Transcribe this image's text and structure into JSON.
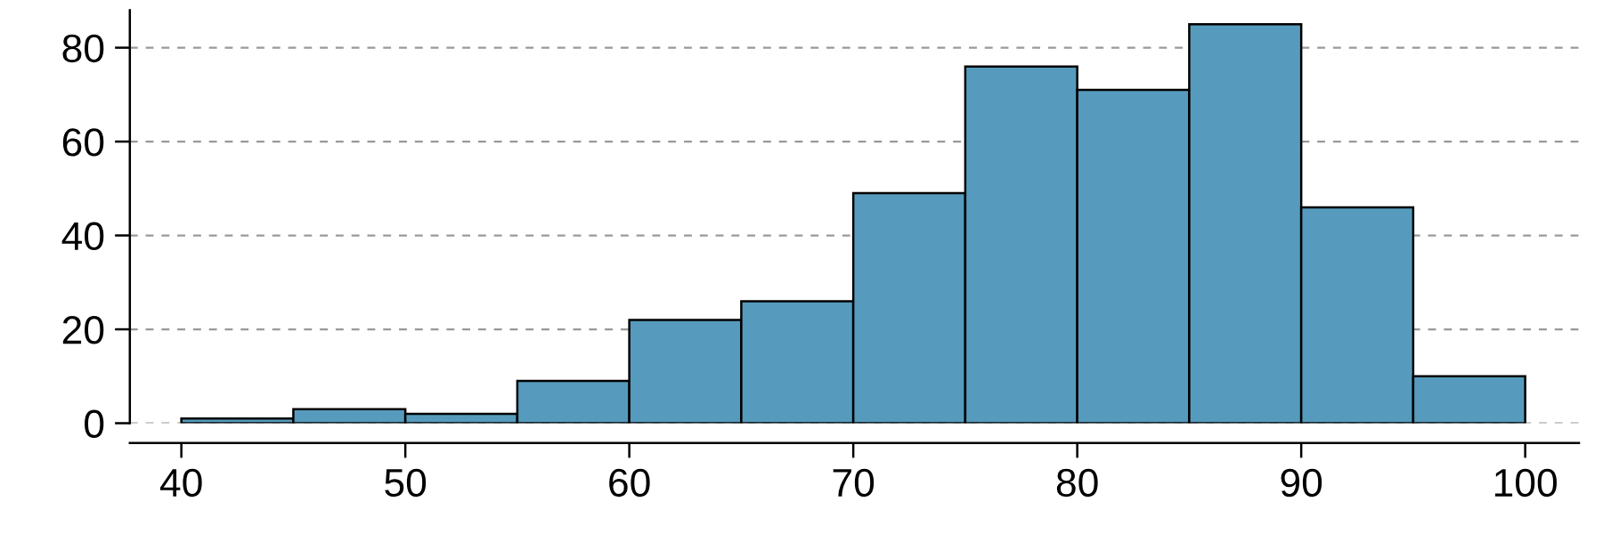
{
  "chart_data": {
    "type": "histogram",
    "bins": [
      40,
      45,
      50,
      55,
      60,
      65,
      70,
      75,
      80,
      85,
      90,
      95,
      100
    ],
    "values": [
      1,
      3,
      2,
      9,
      22,
      26,
      49,
      76,
      71,
      85,
      46,
      10
    ],
    "color": "#569bbd",
    "xlim": [
      37.7,
      102.4
    ],
    "ylim": [
      0,
      88
    ],
    "xticks": [
      40,
      50,
      60,
      70,
      80,
      90,
      100
    ],
    "yticks": [
      0,
      20,
      40,
      60,
      80
    ],
    "grid": "y"
  }
}
